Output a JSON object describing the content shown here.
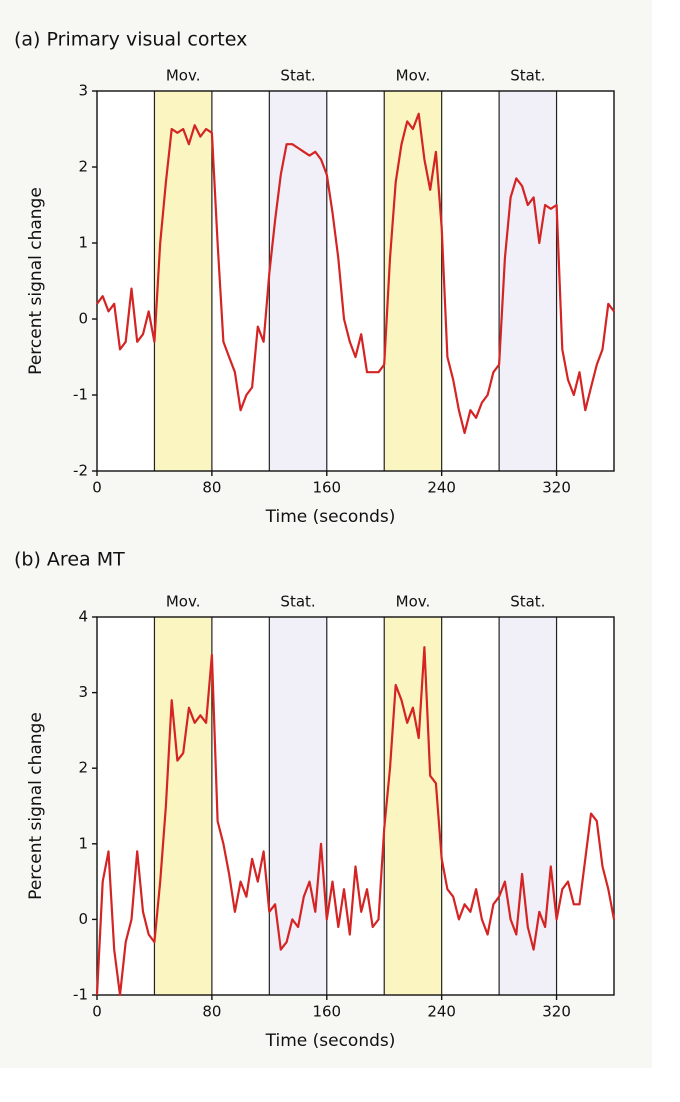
{
  "chart_data": [
    {
      "type": "line",
      "title": "(a) Primary visual cortex",
      "x_label": "Time (seconds)",
      "y_label": "Percent signal change",
      "xlim": [
        0,
        360
      ],
      "xticks": [
        0,
        80,
        160,
        240,
        320
      ],
      "ylim": [
        -2,
        3
      ],
      "yticks": [
        -2,
        -1,
        0,
        1,
        2,
        3
      ],
      "dividers": [
        40,
        80,
        120,
        160,
        200,
        240,
        280,
        320
      ],
      "bands": [
        {
          "start": 40,
          "end": 80,
          "label": "Mov.",
          "color": "#fbf5c2"
        },
        {
          "start": 120,
          "end": 160,
          "label": "Stat.",
          "color": "#f1f0f8"
        },
        {
          "start": 200,
          "end": 240,
          "label": "Mov.",
          "color": "#fbf5c2"
        },
        {
          "start": 280,
          "end": 320,
          "label": "Stat.",
          "color": "#f1f0f8"
        }
      ],
      "x": [
        0,
        4,
        8,
        12,
        16,
        20,
        24,
        28,
        32,
        36,
        40,
        44,
        48,
        52,
        56,
        60,
        64,
        68,
        72,
        76,
        80,
        84,
        88,
        92,
        96,
        100,
        104,
        108,
        112,
        116,
        120,
        124,
        128,
        132,
        136,
        140,
        144,
        148,
        152,
        156,
        160,
        164,
        168,
        172,
        176,
        180,
        184,
        188,
        192,
        196,
        200,
        204,
        208,
        212,
        216,
        220,
        224,
        228,
        232,
        236,
        240,
        244,
        248,
        252,
        256,
        260,
        264,
        268,
        272,
        276,
        280,
        284,
        288,
        292,
        296,
        300,
        304,
        308,
        312,
        316,
        320,
        324,
        328,
        332,
        336,
        340,
        344,
        348,
        352,
        356,
        360
      ],
      "series": [
        {
          "color": "#d42424",
          "values": [
            0.2,
            0.3,
            0.1,
            0.2,
            -0.4,
            -0.3,
            0.4,
            -0.3,
            -0.2,
            0.1,
            -0.3,
            1.0,
            1.8,
            2.5,
            2.45,
            2.5,
            2.3,
            2.55,
            2.4,
            2.5,
            2.45,
            1.0,
            -0.3,
            -0.5,
            -0.7,
            -1.2,
            -1.0,
            -0.9,
            -0.1,
            -0.3,
            0.6,
            1.3,
            1.9,
            2.3,
            2.3,
            2.25,
            2.2,
            2.15,
            2.2,
            2.1,
            1.9,
            1.4,
            0.8,
            0.0,
            -0.3,
            -0.5,
            -0.2,
            -0.7,
            -0.7,
            -0.7,
            -0.6,
            0.8,
            1.8,
            2.3,
            2.6,
            2.5,
            2.7,
            2.1,
            1.7,
            2.2,
            1.2,
            -0.5,
            -0.8,
            -1.2,
            -1.5,
            -1.2,
            -1.3,
            -1.1,
            -1.0,
            -0.7,
            -0.6,
            0.8,
            1.6,
            1.85,
            1.75,
            1.5,
            1.6,
            1.0,
            1.5,
            1.45,
            1.5,
            -0.4,
            -0.8,
            -1.0,
            -0.7,
            -1.2,
            -0.9,
            -0.6,
            -0.4,
            0.2,
            0.1
          ]
        }
      ]
    },
    {
      "type": "line",
      "title": "(b) Area MT",
      "x_label": "Time (seconds)",
      "y_label": "Percent signal change",
      "xlim": [
        0,
        360
      ],
      "xticks": [
        0,
        80,
        160,
        240,
        320
      ],
      "ylim": [
        -1,
        4
      ],
      "yticks": [
        -1,
        0,
        1,
        2,
        3,
        4
      ],
      "dividers": [
        40,
        80,
        120,
        160,
        200,
        240,
        280,
        320
      ],
      "bands": [
        {
          "start": 40,
          "end": 80,
          "label": "Mov.",
          "color": "#fbf5c2"
        },
        {
          "start": 120,
          "end": 160,
          "label": "Stat.",
          "color": "#f1f0f8"
        },
        {
          "start": 200,
          "end": 240,
          "label": "Mov.",
          "color": "#fbf5c2"
        },
        {
          "start": 280,
          "end": 320,
          "label": "Stat.",
          "color": "#f1f0f8"
        }
      ],
      "x": [
        0,
        4,
        8,
        12,
        16,
        20,
        24,
        28,
        32,
        36,
        40,
        44,
        48,
        52,
        56,
        60,
        64,
        68,
        72,
        76,
        80,
        84,
        88,
        92,
        96,
        100,
        104,
        108,
        112,
        116,
        120,
        124,
        128,
        132,
        136,
        140,
        144,
        148,
        152,
        156,
        160,
        164,
        168,
        172,
        176,
        180,
        184,
        188,
        192,
        196,
        200,
        204,
        208,
        212,
        216,
        220,
        224,
        228,
        232,
        236,
        240,
        244,
        248,
        252,
        256,
        260,
        264,
        268,
        272,
        276,
        280,
        284,
        288,
        292,
        296,
        300,
        304,
        308,
        312,
        316,
        320,
        324,
        328,
        332,
        336,
        340,
        344,
        348,
        352,
        356,
        360
      ],
      "series": [
        {
          "color": "#d42424",
          "values": [
            -1.0,
            0.5,
            0.9,
            -0.4,
            -1.0,
            -0.3,
            0.0,
            0.9,
            0.1,
            -0.2,
            -0.3,
            0.5,
            1.5,
            2.9,
            2.1,
            2.2,
            2.8,
            2.6,
            2.7,
            2.6,
            3.5,
            1.3,
            1.0,
            0.6,
            0.1,
            0.5,
            0.3,
            0.8,
            0.5,
            0.9,
            0.1,
            0.2,
            -0.4,
            -0.3,
            0.0,
            -0.1,
            0.3,
            0.5,
            0.1,
            1.0,
            0.0,
            0.5,
            -0.1,
            0.4,
            -0.2,
            0.7,
            0.1,
            0.4,
            -0.1,
            0.0,
            1.2,
            2.0,
            3.1,
            2.9,
            2.6,
            2.8,
            2.4,
            3.6,
            1.9,
            1.8,
            0.8,
            0.4,
            0.3,
            0.0,
            0.2,
            0.1,
            0.4,
            0.0,
            -0.2,
            0.2,
            0.3,
            0.5,
            0.0,
            -0.2,
            0.6,
            -0.1,
            -0.4,
            0.1,
            -0.1,
            0.7,
            0.0,
            0.4,
            0.5,
            0.2,
            0.2,
            0.8,
            1.4,
            1.3,
            0.7,
            0.4,
            0.0
          ]
        }
      ]
    }
  ]
}
